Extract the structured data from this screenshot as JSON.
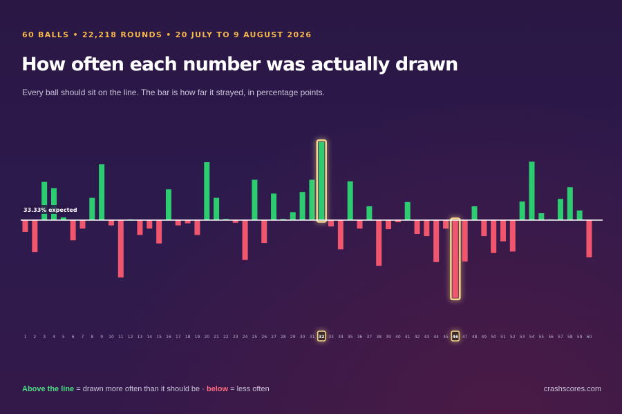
{
  "header": {
    "kicker": "60 BALLS • 22,218 ROUNDS • 20 JULY TO 9 AUGUST 2026",
    "title": "How often each number was actually drawn",
    "subtitle": "Every ball should sit on the line. The bar is how far it strayed, in percentage points."
  },
  "footer": {
    "above_label": "Above the line",
    "above_text": " = drawn more often than it should be · ",
    "below_label": "below",
    "below_text": " = less often",
    "source": "crashscores.com"
  },
  "colors": {
    "above": "#2ecc71",
    "below": "#f0566e",
    "highlight_glow": "#f5d48a",
    "baseline": "#ffffff",
    "axis_label": "#b9b1cc"
  },
  "chart_data": {
    "type": "bar",
    "baseline_label": "33.33% expected",
    "categories": [
      "1",
      "2",
      "3",
      "4",
      "5",
      "6",
      "7",
      "8",
      "9",
      "10",
      "11",
      "12",
      "13",
      "14",
      "15",
      "16",
      "17",
      "18",
      "19",
      "20",
      "21",
      "22",
      "23",
      "24",
      "25",
      "26",
      "27",
      "28",
      "29",
      "30",
      "31",
      "32",
      "33",
      "34",
      "35",
      "36",
      "37",
      "38",
      "39",
      "40",
      "41",
      "42",
      "43",
      "44",
      "45",
      "46",
      "47",
      "48",
      "49",
      "50",
      "51",
      "52",
      "53",
      "54",
      "55",
      "56",
      "57",
      "58",
      "59",
      "60"
    ],
    "values": [
      -0.22,
      -0.6,
      0.72,
      0.6,
      0.05,
      -0.38,
      -0.16,
      0.42,
      1.05,
      -0.1,
      -1.08,
      0.01,
      -0.28,
      -0.16,
      -0.44,
      0.58,
      -0.1,
      -0.06,
      -0.28,
      1.09,
      0.42,
      0.02,
      -0.05,
      -0.75,
      0.76,
      -0.43,
      0.5,
      0.02,
      0.15,
      0.53,
      0.76,
      1.47,
      -0.12,
      -0.55,
      0.73,
      -0.16,
      0.26,
      -0.86,
      -0.17,
      -0.04,
      0.34,
      -0.26,
      -0.3,
      -0.79,
      -0.16,
      -1.46,
      -0.78,
      0.26,
      -0.3,
      -0.62,
      -0.4,
      -0.59,
      0.35,
      1.1,
      0.13,
      0.01,
      0.4,
      0.62,
      0.18,
      -0.7
    ],
    "highlighted": [
      "32",
      "46"
    ],
    "ylim": [
      -1.6,
      1.6
    ],
    "legend": "bottom-left"
  }
}
